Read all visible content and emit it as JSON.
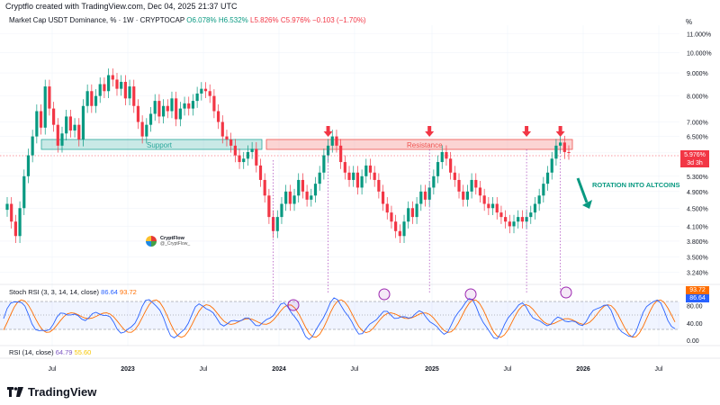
{
  "header": {
    "created_by": "Cryptflo created with TradingView.com, Dec 04, 2025 21:37 UTC",
    "symbol_line": "Market Cap USDT Dominance, % · 1W · CRYPTOCAP",
    "ohlc": {
      "open": "O6.078%",
      "high": "H6.532%",
      "low": "L5.826%",
      "close": "C5.976%",
      "change": "−0.103 (−1.70%)"
    }
  },
  "price_axis": {
    "unit_label": "%",
    "ticks": [
      "11.000%",
      "10.000%",
      "9.000%",
      "8.000%",
      "7.000%",
      "6.500%",
      "5.976%",
      "5.300%",
      "4.900%",
      "4.500%",
      "4.100%",
      "3.800%",
      "3.500%",
      "3.240%"
    ],
    "current_tag": {
      "value": "5.976%",
      "countdown": "3d 3h"
    }
  },
  "stoch_panel": {
    "label": "Stoch RSI (3, 3, 14, 14, close)",
    "k_value": "86.64",
    "d_value": "93.72",
    "axis_ticks": [
      "80.00",
      "40.00",
      "0.00"
    ],
    "colors": {
      "k": "#2962ff",
      "d": "#ff6d00"
    }
  },
  "rsi_panel": {
    "label": "RSI (14, close)",
    "rsi_value": "64.79",
    "ma_value": "55.60"
  },
  "time_axis": [
    "Jul",
    "2023",
    "Jul",
    "2024",
    "Jul",
    "2025",
    "Jul",
    "2026",
    "Jul"
  ],
  "annotations": {
    "support_label": "Support",
    "resistance_label": "Resistance",
    "rotation_label": "ROTATION INTO ALTCOINS"
  },
  "watermark": {
    "name": "CryptFlow",
    "tag": "@_CryptFlow_"
  },
  "branding": "TradingView",
  "colors": {
    "up": "#089981",
    "down": "#f23645",
    "support": "#26a69a",
    "resistance": "#ef5350",
    "purple": "#9c27b0"
  },
  "chart_data": {
    "type": "candlestick",
    "interval": "1W",
    "y_scale": "log",
    "ylim": [
      3.1,
      11.5
    ],
    "support_zone": [
      6.15,
      6.5
    ],
    "resistance_zone": [
      6.15,
      6.5
    ],
    "candles_close_approx": [
      4.6,
      4.2,
      3.9,
      4.5,
      5.3,
      5.9,
      6.5,
      7.4,
      6.8,
      8.4,
      7.5,
      6.9,
      6.2,
      6.6,
      7.2,
      6.7,
      6.9,
      6.4,
      7.6,
      8.2,
      7.6,
      8.0,
      8.5,
      8.2,
      8.9,
      8.7,
      8.3,
      8.6,
      7.9,
      8.4,
      7.6,
      7.0,
      6.5,
      6.9,
      7.3,
      7.8,
      7.2,
      7.6,
      7.4,
      7.9,
      7.1,
      7.5,
      7.7,
      7.5,
      7.8,
      8.1,
      8.3,
      8.2,
      8.0,
      7.4,
      7.0,
      6.5,
      6.4,
      6.2,
      5.9,
      5.7,
      5.8,
      6.0,
      6.1,
      5.6,
      5.2,
      4.8,
      4.3,
      4.0,
      4.3,
      4.6,
      4.9,
      4.6,
      4.8,
      5.2,
      4.9,
      4.7,
      4.8,
      5.1,
      5.4,
      5.9,
      6.2,
      6.5,
      6.2,
      5.7,
      5.4,
      5.2,
      5.4,
      5.0,
      5.3,
      5.6,
      5.4,
      5.2,
      4.9,
      4.6,
      4.4,
      4.2,
      4.0,
      3.9,
      4.2,
      4.5,
      4.3,
      4.6,
      4.9,
      4.7,
      5.0,
      5.3,
      5.7,
      6.0,
      5.8,
      5.4,
      5.2,
      4.9,
      4.7,
      4.9,
      5.2,
      5.0,
      4.8,
      4.6,
      4.5,
      4.6,
      4.4,
      4.3,
      4.2,
      4.1,
      4.2,
      4.3,
      4.2,
      4.3,
      4.4,
      4.6,
      4.8,
      5.1,
      5.4,
      5.8,
      6.2,
      6.3,
      6.0,
      5.976
    ]
  }
}
